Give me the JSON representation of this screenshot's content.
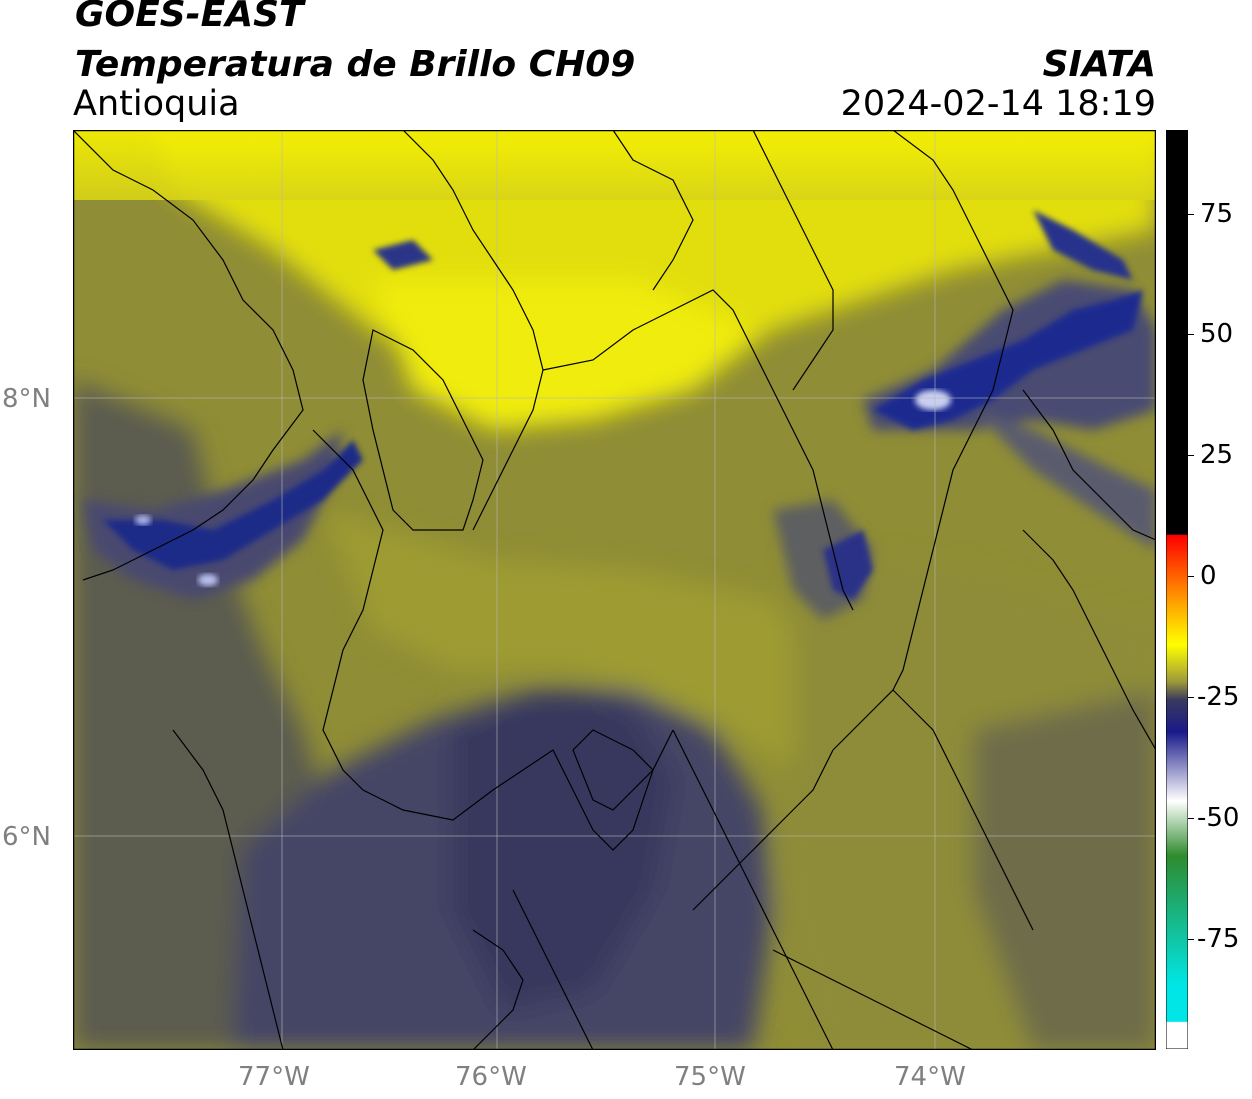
{
  "header": {
    "satellite": "GOES-EAST",
    "product": "Temperatura de Brillo CH09",
    "region": "Antioquia",
    "agency": "SIATA",
    "datetime": "2024-02-14 18:19"
  },
  "map": {
    "x_ticks": [
      "77°W",
      "76°W",
      "75°W",
      "74°W"
    ],
    "y_ticks": [
      "8°N",
      "6°N"
    ],
    "colors": {
      "yellow": "#f5f000",
      "olive": "#a9a72c",
      "dark_olive": "#6f6d43",
      "slate": "#3d3f5c",
      "navy": "#1e2a8a",
      "white": "#dfe3f5"
    }
  },
  "colorbar": {
    "ticks": [
      "75",
      "50",
      "25",
      "0",
      "-25",
      "-50",
      "-75"
    ],
    "colors": [
      "#000000",
      "#ff0000",
      "#ffff00",
      "#3a3a5e",
      "#1a1a8a",
      "#ffffff",
      "#2e8b2e",
      "#00e6e6"
    ]
  }
}
